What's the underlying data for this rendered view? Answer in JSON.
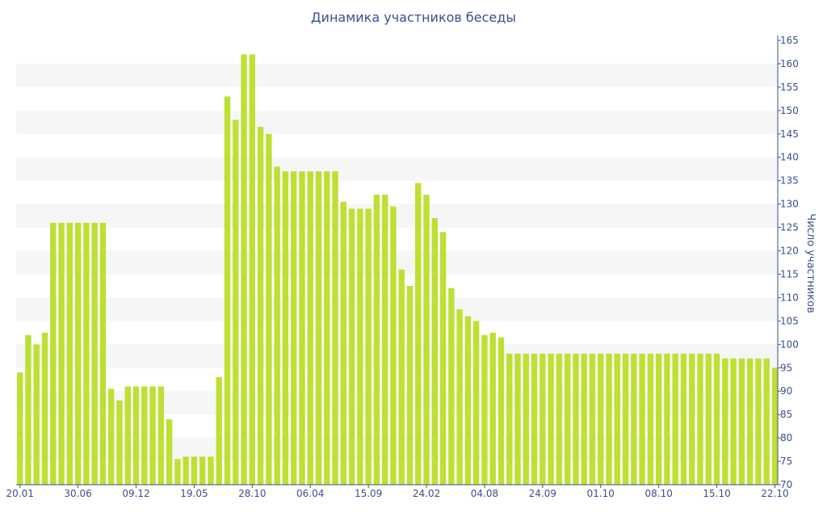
{
  "chart_data": {
    "type": "bar",
    "title": "Динамика участников беседы",
    "xlabel": "",
    "ylabel": "Число участников",
    "ylim": [
      70,
      165
    ],
    "y_ticks": [
      70,
      75,
      80,
      85,
      90,
      95,
      100,
      105,
      110,
      115,
      120,
      125,
      130,
      135,
      140,
      145,
      150,
      155,
      160,
      165
    ],
    "y_axis_side": "right",
    "grid": "alternating horizontal bands",
    "legend": "none",
    "bar_color": "#bde033",
    "x_tick_labels": [
      {
        "index": 0,
        "label": "20.01"
      },
      {
        "index": 7,
        "label": "30.06"
      },
      {
        "index": 14,
        "label": "09.12"
      },
      {
        "index": 21,
        "label": "19.05"
      },
      {
        "index": 28,
        "label": "28.10"
      },
      {
        "index": 35,
        "label": "06.04"
      },
      {
        "index": 42,
        "label": "15.09"
      },
      {
        "index": 49,
        "label": "24.02"
      },
      {
        "index": 56,
        "label": "04.08"
      },
      {
        "index": 63,
        "label": "24.09"
      },
      {
        "index": 70,
        "label": "01.10"
      },
      {
        "index": 77,
        "label": "08.10"
      },
      {
        "index": 84,
        "label": "15.10"
      },
      {
        "index": 91,
        "label": "22.10"
      }
    ],
    "values": [
      94,
      102,
      100,
      102.5,
      126,
      126,
      126,
      126,
      126,
      126,
      126,
      90.5,
      88,
      91,
      91,
      91,
      91,
      91,
      84,
      75.5,
      76,
      76,
      76,
      76,
      93,
      153,
      148,
      162,
      162,
      146.5,
      145,
      138,
      137,
      137,
      137,
      137,
      137,
      137,
      137,
      130.5,
      129,
      129,
      129,
      132,
      132,
      129.5,
      116,
      112.5,
      134.5,
      132,
      127,
      124,
      112,
      107.5,
      106,
      105,
      102,
      102.5,
      101.5,
      98,
      98,
      98,
      98,
      98,
      98,
      98,
      98,
      98,
      98,
      98,
      98,
      98,
      98,
      98,
      98,
      98,
      98,
      98,
      98,
      98,
      98,
      98,
      98,
      98,
      98,
      97,
      97,
      97,
      97,
      97,
      97,
      95
    ]
  }
}
